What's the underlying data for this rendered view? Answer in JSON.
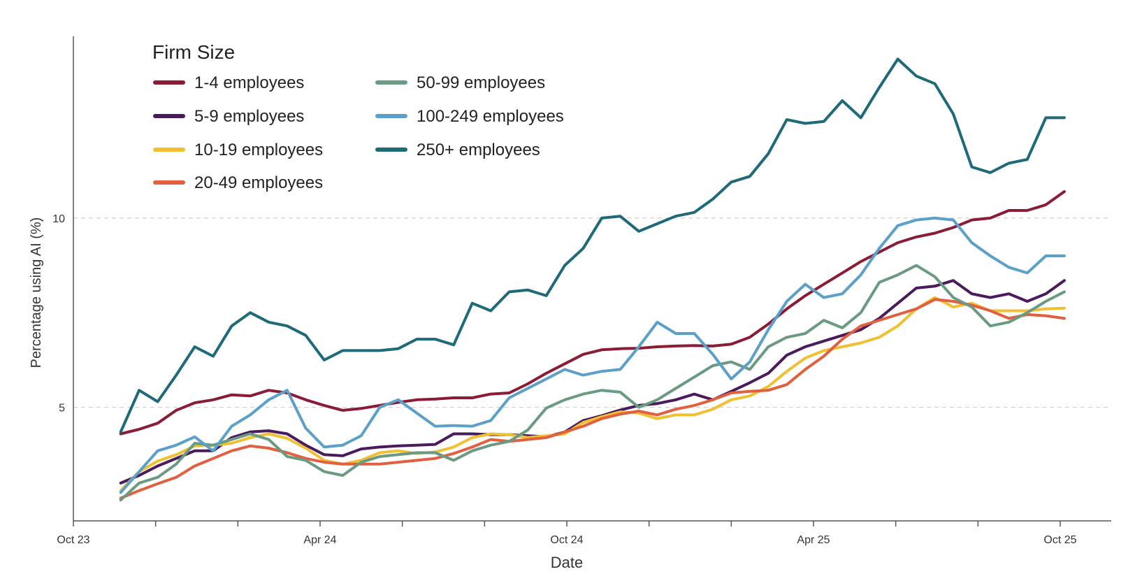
{
  "chart_data": {
    "type": "line",
    "title": "",
    "xlabel": "Date",
    "ylabel": "Percentage using AI (%)",
    "ylim": [
      2.0,
      14.8
    ],
    "yticks": [
      5,
      10
    ],
    "ytick_labels": [
      "5",
      "10"
    ],
    "grid": "horizontal dashed at y ticks",
    "xlim": [
      0,
      25.2
    ],
    "xticks": [
      0,
      2,
      4,
      6,
      8,
      10,
      12,
      14,
      16,
      18,
      20,
      22,
      24
    ],
    "xtick_labels": [
      {
        "x": 0,
        "label": "Oct 23"
      },
      {
        "x": 6,
        "label": "Apr 24"
      },
      {
        "x": 12,
        "label": "Oct 24"
      },
      {
        "x": 18,
        "label": "Apr 25"
      },
      {
        "x": 24,
        "label": "Oct 25"
      }
    ],
    "legend": {
      "title": "Firm Size",
      "placement": "top-left",
      "columns": 2
    },
    "x": [
      1.15,
      1.6,
      2.05,
      2.5,
      2.95,
      3.4,
      3.85,
      4.3,
      4.75,
      5.2,
      5.65,
      6.1,
      6.55,
      7.0,
      7.45,
      7.9,
      8.35,
      8.8,
      9.25,
      9.7,
      10.15,
      10.6,
      11.05,
      11.5,
      11.95,
      12.4,
      12.85,
      13.3,
      13.75,
      14.2,
      14.65,
      15.1,
      15.55,
      16.0,
      16.45,
      16.9,
      17.35,
      17.8,
      18.25,
      18.7,
      19.15,
      19.6,
      20.05,
      20.5,
      20.95,
      21.4,
      21.85,
      22.3,
      22.75,
      23.2,
      23.65,
      24.1
    ],
    "series": [
      {
        "name": "1-4 employees",
        "color": "#8b1c35",
        "values": [
          4.3,
          4.42,
          4.58,
          4.92,
          5.12,
          5.2,
          5.33,
          5.3,
          5.45,
          5.38,
          5.2,
          5.05,
          4.92,
          4.97,
          5.05,
          5.13,
          5.2,
          5.22,
          5.25,
          5.25,
          5.35,
          5.38,
          5.62,
          5.9,
          6.15,
          6.4,
          6.52,
          6.55,
          6.56,
          6.6,
          6.62,
          6.63,
          6.62,
          6.67,
          6.85,
          7.2,
          7.6,
          7.95,
          8.25,
          8.55,
          8.85,
          9.1,
          9.35,
          9.5,
          9.6,
          9.75,
          9.95,
          10.0,
          10.2,
          10.2,
          10.35,
          10.7
        ]
      },
      {
        "name": "5-9 employees",
        "color": "#4a1a5c",
        "values": [
          3.0,
          3.2,
          3.45,
          3.65,
          3.85,
          3.85,
          4.2,
          4.35,
          4.38,
          4.3,
          4.0,
          3.75,
          3.72,
          3.9,
          3.95,
          3.98,
          4.0,
          4.02,
          4.3,
          4.3,
          4.28,
          4.28,
          4.25,
          4.22,
          4.35,
          4.65,
          4.78,
          4.93,
          5.05,
          5.1,
          5.2,
          5.35,
          5.2,
          5.42,
          5.65,
          5.9,
          6.38,
          6.6,
          6.75,
          6.9,
          7.05,
          7.35,
          7.75,
          8.15,
          8.2,
          8.35,
          8.0,
          7.9,
          8.0,
          7.8,
          8.0,
          8.35
        ]
      },
      {
        "name": "10-19 employees",
        "color": "#f0c030",
        "values": [
          2.8,
          3.3,
          3.58,
          3.75,
          3.98,
          4.0,
          4.05,
          4.2,
          4.3,
          4.18,
          3.92,
          3.6,
          3.5,
          3.6,
          3.8,
          3.85,
          3.78,
          3.82,
          3.95,
          4.2,
          4.3,
          4.28,
          4.2,
          4.25,
          4.3,
          4.6,
          4.75,
          4.88,
          4.85,
          4.7,
          4.8,
          4.8,
          4.95,
          5.2,
          5.3,
          5.55,
          5.95,
          6.3,
          6.5,
          6.6,
          6.7,
          6.85,
          7.15,
          7.6,
          7.9,
          7.65,
          7.75,
          7.55,
          7.55,
          7.55,
          7.6,
          7.62
        ]
      },
      {
        "name": "20-49 employees",
        "color": "#e06040",
        "values": [
          2.6,
          2.8,
          2.98,
          3.15,
          3.45,
          3.65,
          3.85,
          3.98,
          3.92,
          3.8,
          3.65,
          3.55,
          3.5,
          3.5,
          3.5,
          3.55,
          3.6,
          3.65,
          3.78,
          3.95,
          4.15,
          4.1,
          4.15,
          4.2,
          4.35,
          4.5,
          4.7,
          4.82,
          4.9,
          4.8,
          4.95,
          5.05,
          5.2,
          5.38,
          5.42,
          5.45,
          5.6,
          6.0,
          6.35,
          6.8,
          7.15,
          7.3,
          7.45,
          7.6,
          7.85,
          7.8,
          7.7,
          7.55,
          7.35,
          7.45,
          7.42,
          7.35
        ]
      },
      {
        "name": "50-99 employees",
        "color": "#6a9a82",
        "values": [
          2.55,
          3.0,
          3.15,
          3.5,
          4.05,
          4.0,
          4.15,
          4.3,
          4.15,
          3.7,
          3.6,
          3.3,
          3.2,
          3.55,
          3.7,
          3.75,
          3.8,
          3.8,
          3.6,
          3.85,
          4.0,
          4.1,
          4.4,
          4.98,
          5.2,
          5.35,
          5.45,
          5.4,
          5.0,
          5.2,
          5.5,
          5.8,
          6.1,
          6.2,
          6.0,
          6.6,
          6.85,
          6.95,
          7.3,
          7.1,
          7.5,
          8.3,
          8.5,
          8.75,
          8.45,
          7.9,
          7.65,
          7.15,
          7.25,
          7.5,
          7.8,
          8.05
        ]
      },
      {
        "name": "100-249 employees",
        "color": "#5aa0c8",
        "values": [
          2.75,
          3.3,
          3.85,
          4.0,
          4.22,
          3.85,
          4.5,
          4.8,
          5.2,
          5.45,
          4.45,
          3.95,
          4.0,
          4.25,
          5.0,
          5.2,
          4.85,
          4.5,
          4.52,
          4.5,
          4.65,
          5.25,
          5.5,
          5.75,
          6.0,
          5.85,
          5.95,
          6.0,
          6.6,
          7.25,
          6.95,
          6.95,
          6.4,
          5.75,
          6.2,
          7.05,
          7.8,
          8.25,
          7.9,
          8.0,
          8.5,
          9.2,
          9.8,
          9.95,
          10.0,
          9.95,
          9.35,
          9.0,
          8.7,
          8.55,
          9.0,
          9.0
        ]
      },
      {
        "name": "250+ employees",
        "color": "#1e6a78",
        "values": [
          4.35,
          5.45,
          5.15,
          5.85,
          6.6,
          6.35,
          7.15,
          7.5,
          7.25,
          7.15,
          6.9,
          6.25,
          6.5,
          6.5,
          6.5,
          6.55,
          6.8,
          6.8,
          6.65,
          7.75,
          7.55,
          8.05,
          8.1,
          7.95,
          8.75,
          9.2,
          10.0,
          10.05,
          9.65,
          9.85,
          10.05,
          10.15,
          10.5,
          10.95,
          11.1,
          11.7,
          12.6,
          12.5,
          12.55,
          13.1,
          12.65,
          13.45,
          14.2,
          13.75,
          13.55,
          12.75,
          11.35,
          11.2,
          11.45,
          11.55,
          12.65,
          12.65
        ]
      }
    ]
  }
}
